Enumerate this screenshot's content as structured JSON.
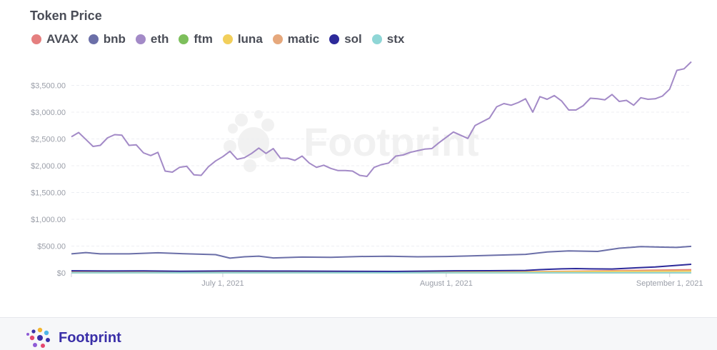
{
  "brand": {
    "name": "Footprint",
    "watermark": "Footprint"
  },
  "chart_data": {
    "type": "line",
    "title": "Token Price",
    "xlabel": "",
    "ylabel": "",
    "x_start": "2021-06-10",
    "x_end": "2021-09-04",
    "x_ticks": [
      {
        "date": "2021-07-01",
        "label": "July 1, 2021"
      },
      {
        "date": "2021-08-01",
        "label": "August 1, 2021"
      },
      {
        "date": "2021-09-01",
        "label": "September 1, 2021"
      }
    ],
    "ylim": [
      0,
      4000
    ],
    "y_ticks": [
      {
        "value": 0,
        "label": "$0"
      },
      {
        "value": 500,
        "label": "$500.00"
      },
      {
        "value": 1000,
        "label": "$1,000.00"
      },
      {
        "value": 1500,
        "label": "$1,500.00"
      },
      {
        "value": 2000,
        "label": "$2,000.00"
      },
      {
        "value": 2500,
        "label": "$2,500.00"
      },
      {
        "value": 3000,
        "label": "$3,000.00"
      },
      {
        "value": 3500,
        "label": "$3,500.00"
      }
    ],
    "grid": true,
    "legend_position": "top-left",
    "series": [
      {
        "name": "AVAX",
        "color": "#e57f7f",
        "points": [
          [
            "2021-06-10",
            14
          ],
          [
            "2021-07-01",
            11
          ],
          [
            "2021-08-01",
            13
          ],
          [
            "2021-08-15",
            26
          ],
          [
            "2021-08-25",
            42
          ],
          [
            "2021-09-04",
            58
          ]
        ]
      },
      {
        "name": "bnb",
        "color": "#6b6fa8",
        "points": [
          [
            "2021-06-10",
            355
          ],
          [
            "2021-06-12",
            378
          ],
          [
            "2021-06-14",
            355
          ],
          [
            "2021-06-18",
            355
          ],
          [
            "2021-06-22",
            374
          ],
          [
            "2021-06-25",
            360
          ],
          [
            "2021-06-30",
            340
          ],
          [
            "2021-07-02",
            275
          ],
          [
            "2021-07-04",
            300
          ],
          [
            "2021-07-06",
            312
          ],
          [
            "2021-07-08",
            278
          ],
          [
            "2021-07-12",
            295
          ],
          [
            "2021-07-16",
            290
          ],
          [
            "2021-07-20",
            305
          ],
          [
            "2021-07-24",
            310
          ],
          [
            "2021-07-28",
            300
          ],
          [
            "2021-08-01",
            305
          ],
          [
            "2021-08-04",
            315
          ],
          [
            "2021-08-08",
            330
          ],
          [
            "2021-08-12",
            345
          ],
          [
            "2021-08-15",
            390
          ],
          [
            "2021-08-18",
            410
          ],
          [
            "2021-08-22",
            400
          ],
          [
            "2021-08-25",
            460
          ],
          [
            "2021-08-28",
            490
          ],
          [
            "2021-08-31",
            480
          ],
          [
            "2021-09-02",
            475
          ],
          [
            "2021-09-04",
            495
          ]
        ]
      },
      {
        "name": "eth",
        "color": "#a38ac7",
        "points": [
          [
            "2021-06-10",
            2540
          ],
          [
            "2021-06-11",
            2620
          ],
          [
            "2021-06-12",
            2490
          ],
          [
            "2021-06-13",
            2360
          ],
          [
            "2021-06-14",
            2380
          ],
          [
            "2021-06-15",
            2520
          ],
          [
            "2021-06-16",
            2580
          ],
          [
            "2021-06-17",
            2570
          ],
          [
            "2021-06-18",
            2380
          ],
          [
            "2021-06-19",
            2390
          ],
          [
            "2021-06-20",
            2240
          ],
          [
            "2021-06-21",
            2190
          ],
          [
            "2021-06-22",
            2250
          ],
          [
            "2021-06-23",
            1900
          ],
          [
            "2021-06-24",
            1880
          ],
          [
            "2021-06-25",
            1970
          ],
          [
            "2021-06-26",
            1990
          ],
          [
            "2021-06-27",
            1830
          ],
          [
            "2021-06-28",
            1820
          ],
          [
            "2021-06-29",
            1980
          ],
          [
            "2021-06-30",
            2090
          ],
          [
            "2021-07-01",
            2170
          ],
          [
            "2021-07-02",
            2270
          ],
          [
            "2021-07-03",
            2120
          ],
          [
            "2021-07-04",
            2150
          ],
          [
            "2021-07-05",
            2230
          ],
          [
            "2021-07-06",
            2330
          ],
          [
            "2021-07-07",
            2230
          ],
          [
            "2021-07-08",
            2320
          ],
          [
            "2021-07-09",
            2140
          ],
          [
            "2021-07-10",
            2140
          ],
          [
            "2021-07-11",
            2100
          ],
          [
            "2021-07-12",
            2180
          ],
          [
            "2021-07-13",
            2050
          ],
          [
            "2021-07-14",
            1970
          ],
          [
            "2021-07-15",
            2010
          ],
          [
            "2021-07-16",
            1950
          ],
          [
            "2021-07-17",
            1910
          ],
          [
            "2021-07-18",
            1910
          ],
          [
            "2021-07-19",
            1900
          ],
          [
            "2021-07-20",
            1820
          ],
          [
            "2021-07-21",
            1800
          ],
          [
            "2021-07-22",
            1970
          ],
          [
            "2021-07-23",
            2020
          ],
          [
            "2021-07-24",
            2050
          ],
          [
            "2021-07-25",
            2180
          ],
          [
            "2021-07-26",
            2200
          ],
          [
            "2021-07-27",
            2250
          ],
          [
            "2021-07-28",
            2280
          ],
          [
            "2021-07-29",
            2310
          ],
          [
            "2021-07-30",
            2320
          ],
          [
            "2021-07-31",
            2430
          ],
          [
            "2021-08-02",
            2630
          ],
          [
            "2021-08-04",
            2510
          ],
          [
            "2021-08-05",
            2750
          ],
          [
            "2021-08-06",
            2820
          ],
          [
            "2021-08-07",
            2890
          ],
          [
            "2021-08-08",
            3100
          ],
          [
            "2021-08-09",
            3160
          ],
          [
            "2021-08-10",
            3130
          ],
          [
            "2021-08-11",
            3180
          ],
          [
            "2021-08-12",
            3250
          ],
          [
            "2021-08-13",
            3000
          ],
          [
            "2021-08-14",
            3290
          ],
          [
            "2021-08-15",
            3240
          ],
          [
            "2021-08-16",
            3310
          ],
          [
            "2021-08-17",
            3210
          ],
          [
            "2021-08-18",
            3040
          ],
          [
            "2021-08-19",
            3040
          ],
          [
            "2021-08-20",
            3120
          ],
          [
            "2021-08-21",
            3260
          ],
          [
            "2021-08-22",
            3250
          ],
          [
            "2021-08-23",
            3230
          ],
          [
            "2021-08-24",
            3330
          ],
          [
            "2021-08-25",
            3200
          ],
          [
            "2021-08-26",
            3220
          ],
          [
            "2021-08-27",
            3130
          ],
          [
            "2021-08-28",
            3270
          ],
          [
            "2021-08-29",
            3240
          ],
          [
            "2021-08-30",
            3250
          ],
          [
            "2021-08-31",
            3300
          ],
          [
            "2021-09-01",
            3430
          ],
          [
            "2021-09-02",
            3780
          ],
          [
            "2021-09-03",
            3810
          ],
          [
            "2021-09-04",
            3940
          ]
        ]
      },
      {
        "name": "ftm",
        "color": "#7dbf5c",
        "points": [
          [
            "2021-06-10",
            1
          ],
          [
            "2021-08-15",
            1
          ],
          [
            "2021-09-04",
            2
          ]
        ]
      },
      {
        "name": "luna",
        "color": "#f2cf5b",
        "points": [
          [
            "2021-06-10",
            7
          ],
          [
            "2021-07-20",
            7
          ],
          [
            "2021-08-10",
            15
          ],
          [
            "2021-08-25",
            30
          ],
          [
            "2021-09-04",
            34
          ]
        ]
      },
      {
        "name": "matic",
        "color": "#e6a87c",
        "points": [
          [
            "2021-06-10",
            2
          ],
          [
            "2021-09-04",
            2
          ]
        ]
      },
      {
        "name": "sol",
        "color": "#2d2a9a",
        "points": [
          [
            "2021-06-10",
            38
          ],
          [
            "2021-06-15",
            35
          ],
          [
            "2021-06-20",
            36
          ],
          [
            "2021-06-25",
            30
          ],
          [
            "2021-07-01",
            34
          ],
          [
            "2021-07-10",
            33
          ],
          [
            "2021-07-20",
            28
          ],
          [
            "2021-07-25",
            27
          ],
          [
            "2021-08-01",
            37
          ],
          [
            "2021-08-07",
            40
          ],
          [
            "2021-08-12",
            45
          ],
          [
            "2021-08-14",
            60
          ],
          [
            "2021-08-17",
            75
          ],
          [
            "2021-08-19",
            80
          ],
          [
            "2021-08-21",
            75
          ],
          [
            "2021-08-24",
            72
          ],
          [
            "2021-08-27",
            92
          ],
          [
            "2021-08-30",
            110
          ],
          [
            "2021-09-01",
            130
          ],
          [
            "2021-09-02",
            140
          ],
          [
            "2021-09-04",
            160
          ]
        ]
      },
      {
        "name": "stx",
        "color": "#8fd6d6",
        "points": [
          [
            "2021-06-10",
            1
          ],
          [
            "2021-09-04",
            1
          ]
        ]
      }
    ]
  }
}
